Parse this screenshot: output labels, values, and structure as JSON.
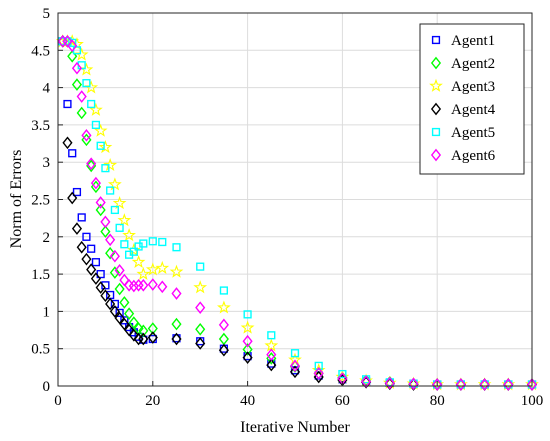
{
  "chart_data": {
    "type": "scatter",
    "xlabel": "Iterative Number",
    "ylabel": "Norm of Errors",
    "xlim": [
      0,
      100
    ],
    "ylim": [
      0,
      5
    ],
    "xticks": [
      "0",
      "20",
      "40",
      "60",
      "80",
      "100"
    ],
    "yticks": [
      "0",
      "0.5",
      "1",
      "1.5",
      "2",
      "2.5",
      "3",
      "3.5",
      "4",
      "4.5",
      "5"
    ],
    "grid": true,
    "legend_position": "top-right",
    "series": [
      {
        "name": "Agent1",
        "marker": "square",
        "color": "#0000ff",
        "x": [
          1,
          2,
          3,
          4,
          5,
          6,
          7,
          8,
          9,
          10,
          11,
          12,
          13,
          14,
          15,
          16,
          17,
          18,
          20,
          25,
          30,
          35,
          40,
          45,
          50,
          55,
          60,
          65,
          70,
          75,
          80,
          85,
          90,
          95,
          100
        ],
        "y": [
          4.62,
          3.78,
          3.12,
          2.6,
          2.26,
          2.0,
          1.84,
          1.66,
          1.5,
          1.35,
          1.22,
          1.1,
          0.98,
          0.88,
          0.79,
          0.72,
          0.66,
          0.62,
          0.63,
          0.64,
          0.6,
          0.5,
          0.4,
          0.3,
          0.21,
          0.14,
          0.09,
          0.06,
          0.04,
          0.03,
          0.02,
          0.02,
          0.02,
          0.02,
          0.02
        ]
      },
      {
        "name": "Agent2",
        "marker": "diamond",
        "color": "#00ff00",
        "x": [
          1,
          2,
          3,
          4,
          5,
          6,
          7,
          8,
          9,
          10,
          11,
          12,
          13,
          14,
          15,
          16,
          17,
          18,
          20,
          25,
          30,
          35,
          40,
          45,
          50,
          55,
          60,
          65,
          70,
          75,
          80,
          85,
          90,
          95,
          100
        ],
        "y": [
          4.62,
          4.62,
          4.42,
          4.04,
          3.66,
          3.3,
          2.95,
          2.67,
          2.36,
          2.07,
          1.78,
          1.52,
          1.3,
          1.12,
          0.97,
          0.85,
          0.77,
          0.74,
          0.77,
          0.83,
          0.76,
          0.63,
          0.49,
          0.37,
          0.26,
          0.17,
          0.11,
          0.07,
          0.05,
          0.03,
          0.02,
          0.02,
          0.02,
          0.02,
          0.02
        ]
      },
      {
        "name": "Agent3",
        "marker": "star",
        "color": "#ffff00",
        "x": [
          1,
          2,
          3,
          4,
          5,
          6,
          7,
          8,
          9,
          10,
          11,
          12,
          13,
          14,
          15,
          16,
          17,
          18,
          20,
          22,
          25,
          30,
          35,
          40,
          45,
          50,
          55,
          60,
          65,
          70,
          75,
          80,
          85,
          90,
          95,
          100
        ],
        "y": [
          4.62,
          4.62,
          4.62,
          4.58,
          4.44,
          4.24,
          4.0,
          3.7,
          3.42,
          3.2,
          2.96,
          2.7,
          2.45,
          2.22,
          2.02,
          1.82,
          1.66,
          1.5,
          1.56,
          1.58,
          1.53,
          1.32,
          1.05,
          0.78,
          0.54,
          0.35,
          0.21,
          0.12,
          0.07,
          0.04,
          0.03,
          0.02,
          0.02,
          0.02,
          0.02,
          0.02
        ]
      },
      {
        "name": "Agent4",
        "marker": "diamond",
        "color": "#000000",
        "x": [
          1,
          2,
          3,
          4,
          5,
          6,
          7,
          8,
          9,
          10,
          11,
          12,
          13,
          14,
          15,
          16,
          17,
          18,
          20,
          25,
          30,
          35,
          40,
          45,
          50,
          55,
          60,
          65,
          70,
          75,
          80,
          85,
          90,
          95,
          100
        ],
        "y": [
          4.62,
          3.26,
          2.52,
          2.11,
          1.86,
          1.7,
          1.56,
          1.44,
          1.32,
          1.21,
          1.1,
          1.0,
          0.91,
          0.83,
          0.75,
          0.68,
          0.63,
          0.63,
          0.65,
          0.63,
          0.57,
          0.48,
          0.38,
          0.28,
          0.19,
          0.12,
          0.08,
          0.05,
          0.03,
          0.02,
          0.02,
          0.02,
          0.02,
          0.02,
          0.02
        ]
      },
      {
        "name": "Agent5",
        "marker": "square",
        "color": "#00ffff",
        "x": [
          1,
          2,
          3,
          4,
          5,
          6,
          7,
          8,
          9,
          10,
          11,
          12,
          13,
          14,
          15,
          16,
          17,
          18,
          20,
          22,
          25,
          30,
          35,
          40,
          45,
          50,
          55,
          60,
          65,
          70,
          75,
          80,
          85,
          90,
          95,
          100
        ],
        "y": [
          4.62,
          4.62,
          4.6,
          4.5,
          4.3,
          4.06,
          3.78,
          3.5,
          3.22,
          2.92,
          2.62,
          2.36,
          2.12,
          1.9,
          1.76,
          1.8,
          1.87,
          1.91,
          1.94,
          1.93,
          1.86,
          1.6,
          1.28,
          0.96,
          0.68,
          0.44,
          0.27,
          0.16,
          0.09,
          0.05,
          0.03,
          0.02,
          0.02,
          0.02,
          0.02,
          0.02
        ]
      },
      {
        "name": "Agent6",
        "marker": "diamond",
        "color": "#ff00ff",
        "x": [
          1,
          2,
          3,
          4,
          5,
          6,
          7,
          8,
          9,
          10,
          11,
          12,
          13,
          14,
          15,
          16,
          17,
          18,
          20,
          22,
          25,
          30,
          35,
          40,
          45,
          50,
          55,
          60,
          65,
          70,
          75,
          80,
          85,
          90,
          95,
          100
        ],
        "y": [
          4.62,
          4.62,
          4.56,
          4.26,
          3.88,
          3.36,
          2.98,
          2.72,
          2.46,
          2.2,
          1.96,
          1.74,
          1.55,
          1.42,
          1.35,
          1.34,
          1.35,
          1.35,
          1.36,
          1.33,
          1.24,
          1.05,
          0.82,
          0.6,
          0.42,
          0.27,
          0.17,
          0.1,
          0.06,
          0.04,
          0.03,
          0.02,
          0.02,
          0.02,
          0.02,
          0.02
        ]
      }
    ]
  }
}
